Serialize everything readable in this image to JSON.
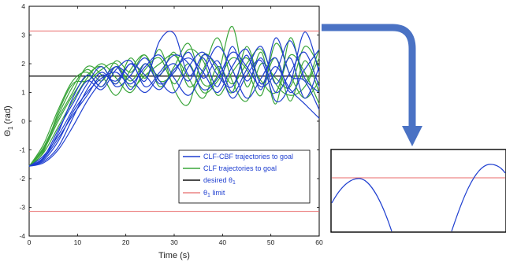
{
  "chart_data": {
    "type": "line",
    "xlabel": "Time (s)",
    "ylabel": "Θ",
    "ylabel_sub": "1",
    "ylabel_unit": "(rad)",
    "xlim": [
      0,
      60
    ],
    "ylim": [
      -4,
      4
    ],
    "xticks": [
      "0",
      "10",
      "20",
      "30",
      "40",
      "50",
      "60"
    ],
    "yticks": [
      "-4",
      "-3",
      "-2",
      "-1",
      "0",
      "1",
      "2",
      "3",
      "4"
    ],
    "grid": false,
    "legend_position": "lower-right",
    "legend": [
      {
        "label": "CLF-CBF trajectories to goal",
        "color": "#1f3fd0",
        "text_color": "#1f3fd0"
      },
      {
        "label": "CLF trajectories to goal",
        "color": "#3aa53a",
        "text_color": "#1f3fd0"
      },
      {
        "label_main": "desired θ",
        "label_sub": "1",
        "color": "#111111",
        "text_color": "#1f3fd0"
      },
      {
        "label_main": "θ",
        "label_sub": "1",
        "label_rest": " limit",
        "color": "#e86a6a",
        "text_color": "#1f3fd0"
      }
    ],
    "reference_lines": [
      {
        "name": "desired θ1",
        "y": 1.5708,
        "color": "#111111"
      },
      {
        "name": "θ1 limit (upper)",
        "y": 3.1416,
        "color": "#e86a6a"
      },
      {
        "name": "θ1 limit (lower)",
        "y": -3.1416,
        "color": "#e86a6a"
      }
    ],
    "series": [
      {
        "group": "CLF-CBF",
        "color": "#1f3fd0",
        "x": [
          0,
          3,
          6,
          9,
          12,
          15,
          18,
          21,
          24,
          27,
          30,
          33,
          36,
          39,
          42,
          45,
          48,
          51,
          54,
          57,
          60
        ],
        "y": [
          -1.57,
          -1.3,
          -0.4,
          0.8,
          1.6,
          1.2,
          1.9,
          1.1,
          2.0,
          1.3,
          1.7,
          2.4,
          1.5,
          2.1,
          1.0,
          1.8,
          2.6,
          1.3,
          2.2,
          0.8,
          1.9
        ]
      },
      {
        "group": "CLF-CBF",
        "color": "#1f3fd0",
        "x": [
          0,
          3,
          6,
          9,
          12,
          15,
          18,
          21,
          24,
          27,
          30,
          33,
          36,
          39,
          42,
          45,
          48,
          51,
          54,
          57,
          60
        ],
        "y": [
          -1.57,
          -1.4,
          -0.9,
          0.1,
          1.1,
          1.7,
          1.3,
          2.0,
          1.4,
          2.8,
          3.05,
          1.6,
          2.2,
          1.2,
          2.6,
          1.4,
          2.2,
          1.0,
          1.7,
          2.4,
          1.2
        ]
      },
      {
        "group": "CLF-CBF",
        "color": "#1f3fd0",
        "x": [
          0,
          3,
          6,
          9,
          12,
          15,
          18,
          21,
          24,
          27,
          30,
          33,
          36,
          39,
          42,
          45,
          48,
          51,
          54,
          57,
          60
        ],
        "y": [
          -1.57,
          -1.2,
          -0.5,
          0.4,
          1.3,
          1.9,
          1.2,
          1.6,
          2.2,
          1.4,
          1.0,
          1.9,
          2.4,
          1.6,
          1.2,
          2.3,
          1.1,
          2.9,
          1.6,
          1.4,
          0.4
        ]
      },
      {
        "group": "CLF-CBF",
        "color": "#1f3fd0",
        "x": [
          0,
          3,
          6,
          9,
          12,
          15,
          18,
          21,
          24,
          27,
          30,
          33,
          36,
          39,
          42,
          45,
          48,
          51,
          54,
          57,
          60
        ],
        "y": [
          -1.57,
          -1.35,
          -0.7,
          0.3,
          1.0,
          1.5,
          1.7,
          1.3,
          1.9,
          2.3,
          1.5,
          0.9,
          1.7,
          2.6,
          1.8,
          0.8,
          1.5,
          2.2,
          1.0,
          1.8,
          2.5
        ]
      },
      {
        "group": "CLF-CBF",
        "color": "#1f3fd0",
        "x": [
          0,
          3,
          6,
          9,
          12,
          15,
          18,
          21,
          24,
          27,
          30,
          33,
          36,
          39,
          42,
          45,
          48,
          51,
          54,
          57,
          60
        ],
        "y": [
          -1.57,
          -1.25,
          -0.3,
          0.6,
          1.4,
          1.1,
          1.8,
          2.1,
          1.2,
          1.7,
          2.3,
          2.0,
          1.1,
          1.5,
          2.4,
          1.9,
          1.2,
          1.7,
          2.8,
          1.5,
          1.0
        ]
      },
      {
        "group": "CLF-CBF",
        "color": "#1f3fd0",
        "x": [
          0,
          3,
          6,
          9,
          12,
          15,
          18,
          21,
          24,
          27,
          30,
          33,
          36,
          39,
          42,
          45,
          48,
          51,
          54,
          57,
          60
        ],
        "y": [
          -1.57,
          -1.45,
          -1.0,
          -0.2,
          0.7,
          1.4,
          1.9,
          1.5,
          1.0,
          1.6,
          2.0,
          1.4,
          2.3,
          1.9,
          0.8,
          1.6,
          2.1,
          0.7,
          1.3,
          3.1,
          1.7
        ]
      },
      {
        "group": "CLF-CBF",
        "color": "#1f3fd0",
        "x": [
          0,
          3,
          6,
          9,
          12,
          15,
          18,
          21,
          24,
          27,
          30,
          33,
          36,
          39,
          42,
          45,
          48,
          51,
          54,
          57,
          60
        ],
        "y": [
          -1.57,
          -1.3,
          -0.6,
          0.2,
          0.9,
          1.6,
          1.4,
          2.0,
          1.6,
          1.1,
          1.8,
          2.2,
          1.7,
          1.0,
          1.9,
          2.5,
          1.3,
          1.9,
          1.1,
          0.6,
          0.1
        ]
      },
      {
        "group": "CLF",
        "color": "#3aa53a",
        "x": [
          0,
          3,
          6,
          9,
          12,
          15,
          18,
          21,
          24,
          27,
          30,
          33,
          36,
          39,
          42,
          45,
          48,
          51,
          54,
          57,
          60
        ],
        "y": [
          -1.57,
          -0.9,
          0.2,
          1.2,
          1.8,
          1.4,
          2.1,
          1.7,
          2.3,
          1.2,
          1.9,
          2.7,
          1.3,
          1.6,
          3.3,
          1.2,
          2.4,
          0.6,
          2.9,
          1.4,
          2.5
        ]
      },
      {
        "group": "CLF",
        "color": "#3aa53a",
        "x": [
          0,
          3,
          6,
          9,
          12,
          15,
          18,
          21,
          24,
          27,
          30,
          33,
          36,
          39,
          42,
          45,
          48,
          51,
          54,
          57,
          60
        ],
        "y": [
          -1.57,
          -1.0,
          0.0,
          0.9,
          1.6,
          1.9,
          1.3,
          2.2,
          1.5,
          2.5,
          1.1,
          0.6,
          2.3,
          1.8,
          1.0,
          2.6,
          1.3,
          2.2,
          0.7,
          2.1,
          1.0
        ]
      },
      {
        "group": "CLF",
        "color": "#3aa53a",
        "x": [
          0,
          3,
          6,
          9,
          12,
          15,
          18,
          21,
          24,
          27,
          30,
          33,
          36,
          39,
          42,
          45,
          48,
          51,
          54,
          57,
          60
        ],
        "y": [
          -1.57,
          -0.8,
          0.4,
          1.4,
          1.7,
          1.2,
          1.9,
          1.4,
          2.0,
          1.6,
          2.4,
          1.2,
          1.8,
          2.9,
          1.4,
          0.7,
          2.0,
          1.5,
          1.2,
          2.6,
          1.9
        ]
      },
      {
        "group": "CLF",
        "color": "#3aa53a",
        "x": [
          0,
          3,
          6,
          9,
          12,
          15,
          18,
          21,
          24,
          27,
          30,
          33,
          36,
          39,
          42,
          45,
          48,
          51,
          54,
          57,
          60
        ],
        "y": [
          -1.57,
          -1.1,
          -0.2,
          0.7,
          1.5,
          2.0,
          1.5,
          1.0,
          1.8,
          2.2,
          1.3,
          2.0,
          1.0,
          1.4,
          2.2,
          1.8,
          0.9,
          2.7,
          1.6,
          0.8,
          1.4
        ]
      },
      {
        "group": "CLF",
        "color": "#3aa53a",
        "x": [
          0,
          3,
          6,
          9,
          12,
          15,
          18,
          21,
          24,
          27,
          30,
          33,
          36,
          39,
          42,
          45,
          48,
          51,
          54,
          57,
          60
        ],
        "y": [
          -1.57,
          -0.95,
          0.1,
          1.0,
          1.9,
          1.6,
          0.9,
          1.8,
          2.3,
          1.4,
          1.7,
          2.5,
          2.1,
          0.9,
          1.7,
          2.2,
          1.4,
          1.0,
          2.3,
          1.7,
          0.6
        ]
      },
      {
        "group": "CLF",
        "color": "#3aa53a",
        "x": [
          0,
          3,
          6,
          9,
          12,
          15,
          18,
          21,
          24,
          27,
          30,
          33,
          36,
          39,
          42,
          45,
          48,
          51,
          54,
          57,
          60
        ],
        "y": [
          -1.57,
          -1.05,
          0.3,
          1.3,
          1.4,
          1.8,
          2.0,
          1.2,
          1.6,
          2.0,
          2.3,
          1.5,
          0.8,
          1.9,
          1.3,
          2.0,
          2.5,
          1.3,
          0.9,
          1.2,
          2.2
        ]
      }
    ]
  },
  "inset": {
    "arrow_color": "#4a72c4",
    "curve_color": "#1f3fd0",
    "limit_color": "#e86a6a"
  }
}
